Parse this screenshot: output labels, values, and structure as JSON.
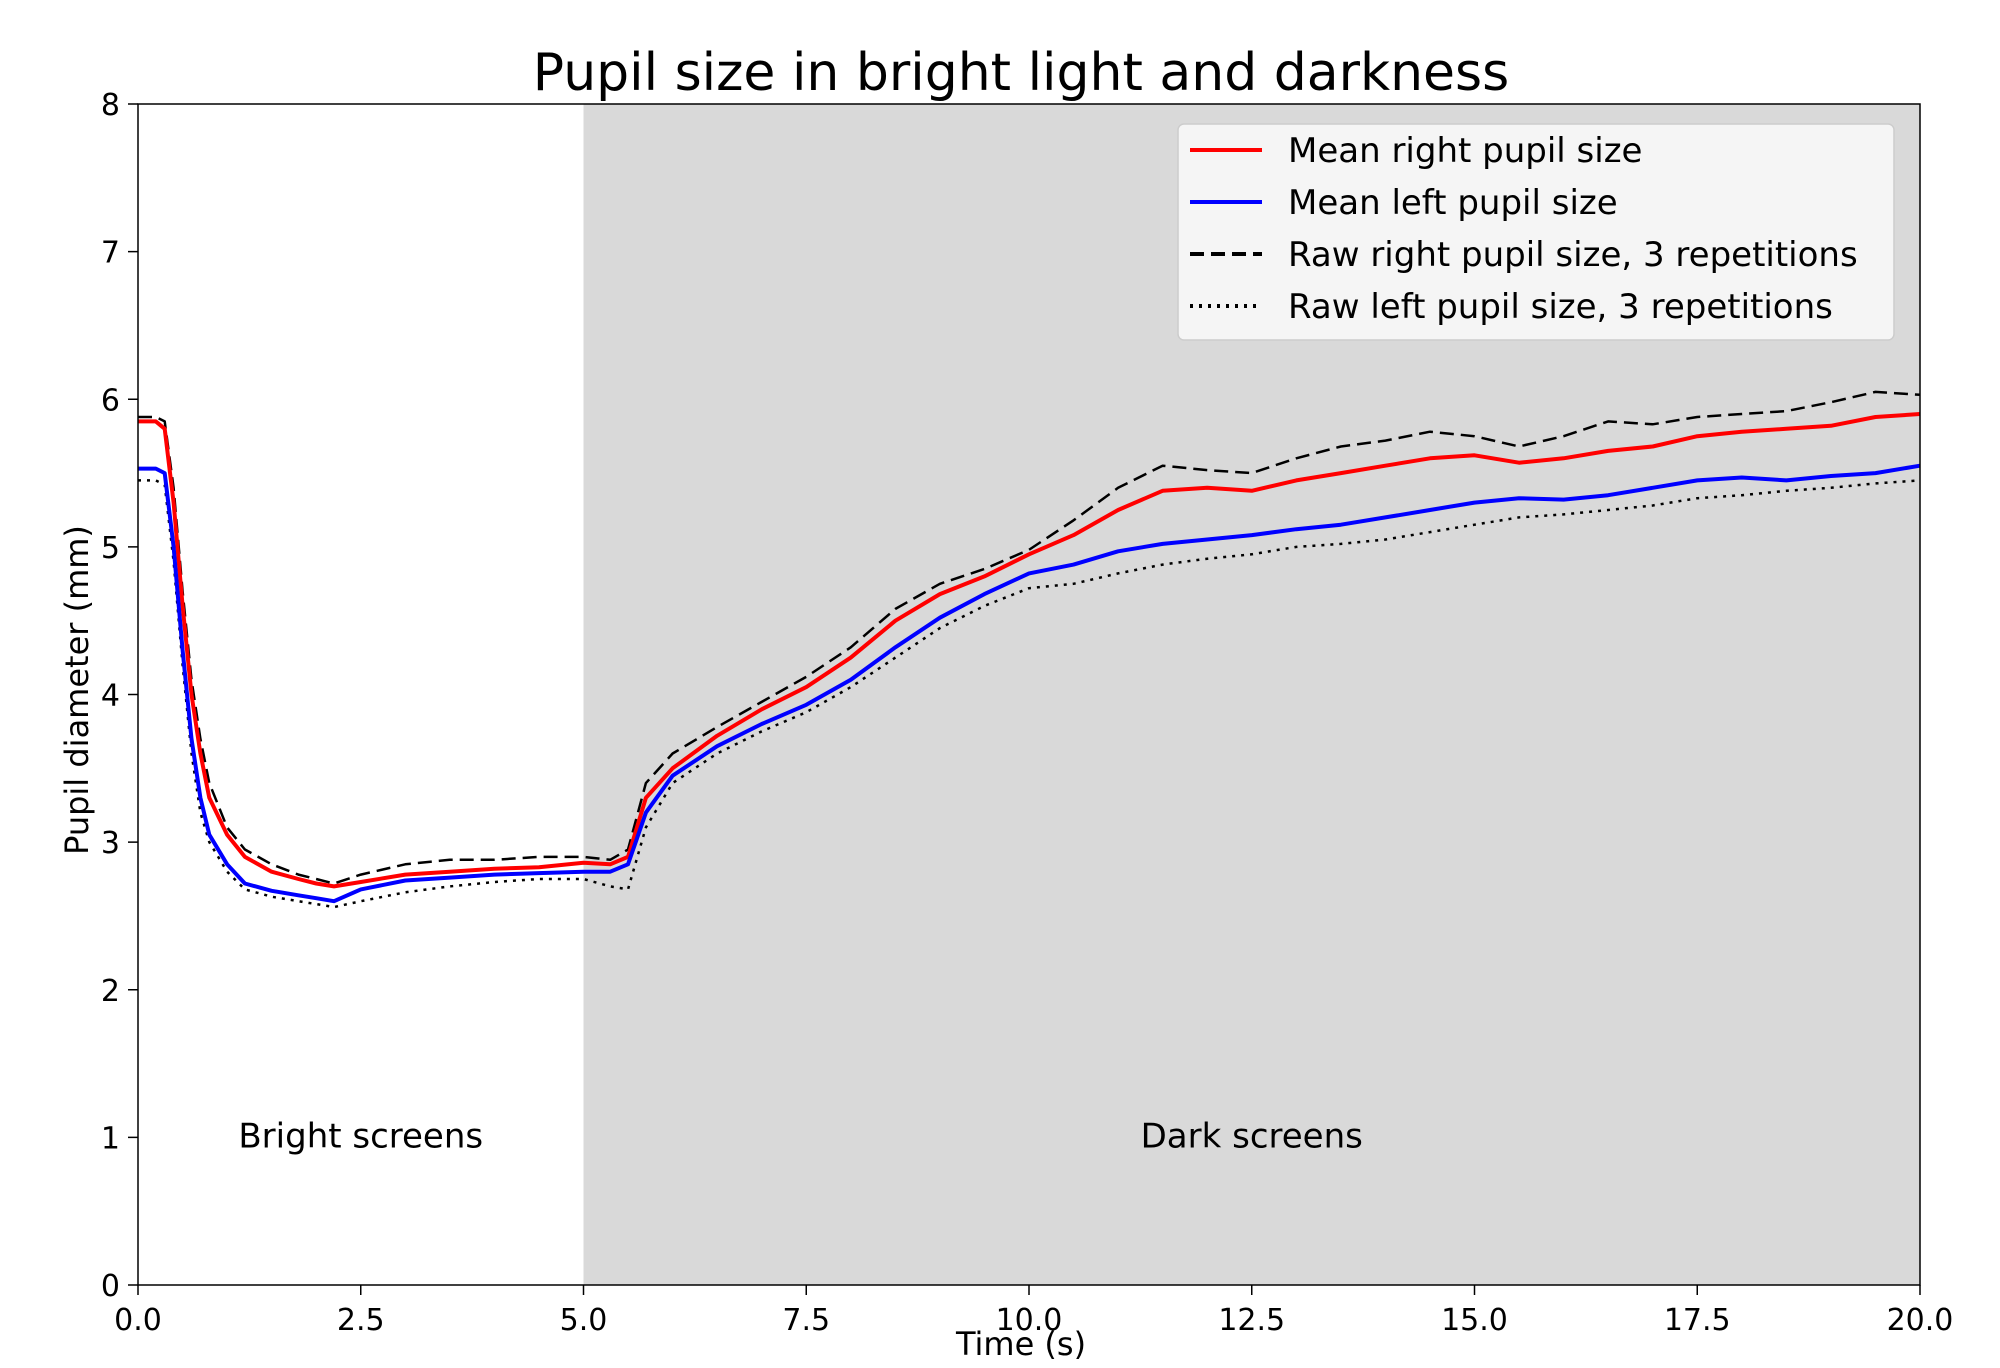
{
  "chart_data": {
    "type": "line",
    "title": "Pupil size in bright light and darkness",
    "xlabel": "Time (s)",
    "ylabel": "Pupil diameter (mm)",
    "xlim": [
      0,
      20
    ],
    "ylim": [
      0,
      8
    ],
    "x_ticks": [
      "0.0",
      "2.5",
      "5.0",
      "7.5",
      "10.0",
      "12.5",
      "15.0",
      "17.5",
      "20.0"
    ],
    "y_ticks": [
      "0",
      "1",
      "2",
      "3",
      "4",
      "5",
      "6",
      "7",
      "8"
    ],
    "grid": false,
    "legend_position": "top-right",
    "shaded_region": {
      "x_start": 5.0,
      "x_end": 20.0,
      "color": "#d9d9d9"
    },
    "annotations": [
      {
        "text": "Bright screens",
        "x": 2.5,
        "y": 1.0
      },
      {
        "text": "Dark screens",
        "x": 12.5,
        "y": 1.0
      }
    ],
    "series": [
      {
        "name": "Mean right pupil size",
        "color": "#ff0000",
        "style": "solid",
        "x": [
          0,
          0.2,
          0.3,
          0.4,
          0.5,
          0.6,
          0.7,
          0.8,
          1.0,
          1.2,
          1.5,
          1.8,
          2.0,
          2.2,
          2.5,
          3.0,
          3.5,
          4.0,
          4.5,
          5.0,
          5.3,
          5.5,
          5.7,
          6.0,
          6.5,
          7.0,
          7.5,
          8.0,
          8.5,
          9.0,
          9.5,
          10.0,
          10.5,
          11.0,
          11.5,
          12.0,
          12.5,
          13.0,
          13.5,
          14.0,
          14.5,
          15.0,
          15.5,
          16.0,
          16.5,
          17.0,
          17.5,
          18.0,
          18.5,
          19.0,
          19.5,
          20.0
        ],
        "y": [
          5.85,
          5.85,
          5.8,
          5.3,
          4.6,
          4.0,
          3.6,
          3.3,
          3.05,
          2.9,
          2.8,
          2.75,
          2.72,
          2.7,
          2.73,
          2.78,
          2.8,
          2.82,
          2.83,
          2.86,
          2.85,
          2.9,
          3.3,
          3.5,
          3.72,
          3.9,
          4.05,
          4.25,
          4.5,
          4.68,
          4.8,
          4.95,
          5.08,
          5.25,
          5.38,
          5.4,
          5.38,
          5.45,
          5.5,
          5.55,
          5.6,
          5.62,
          5.57,
          5.6,
          5.65,
          5.68,
          5.75,
          5.78,
          5.8,
          5.82,
          5.88,
          5.9
        ]
      },
      {
        "name": "Mean left pupil size",
        "color": "#0000ff",
        "style": "solid",
        "x": [
          0,
          0.2,
          0.3,
          0.4,
          0.5,
          0.6,
          0.7,
          0.8,
          1.0,
          1.2,
          1.5,
          1.8,
          2.0,
          2.2,
          2.5,
          3.0,
          3.5,
          4.0,
          4.5,
          5.0,
          5.3,
          5.5,
          5.7,
          6.0,
          6.5,
          7.0,
          7.5,
          8.0,
          8.5,
          9.0,
          9.5,
          10.0,
          10.5,
          11.0,
          11.5,
          12.0,
          12.5,
          13.0,
          13.5,
          14.0,
          14.5,
          15.0,
          15.5,
          16.0,
          16.5,
          17.0,
          17.5,
          18.0,
          18.5,
          19.0,
          19.5,
          20.0
        ],
        "y": [
          5.53,
          5.53,
          5.5,
          5.0,
          4.3,
          3.7,
          3.3,
          3.05,
          2.85,
          2.72,
          2.67,
          2.64,
          2.62,
          2.6,
          2.68,
          2.74,
          2.76,
          2.78,
          2.79,
          2.8,
          2.8,
          2.85,
          3.2,
          3.45,
          3.65,
          3.8,
          3.93,
          4.1,
          4.32,
          4.52,
          4.68,
          4.82,
          4.88,
          4.97,
          5.02,
          5.05,
          5.08,
          5.12,
          5.15,
          5.2,
          5.25,
          5.3,
          5.33,
          5.32,
          5.35,
          5.4,
          5.45,
          5.47,
          5.45,
          5.48,
          5.5,
          5.55
        ]
      },
      {
        "name": "Raw right pupil size, 3 repetitions",
        "color": "#000000",
        "style": "dashed",
        "x": [
          0,
          0.2,
          0.3,
          0.4,
          0.5,
          0.6,
          0.7,
          0.8,
          1.0,
          1.2,
          1.5,
          1.8,
          2.0,
          2.2,
          2.5,
          3.0,
          3.5,
          4.0,
          4.5,
          5.0,
          5.3,
          5.5,
          5.7,
          6.0,
          6.5,
          7.0,
          7.5,
          8.0,
          8.5,
          9.0,
          9.5,
          10.0,
          10.5,
          11.0,
          11.5,
          12.0,
          12.5,
          13.0,
          13.5,
          14.0,
          14.5,
          15.0,
          15.5,
          16.0,
          16.5,
          17.0,
          17.5,
          18.0,
          18.5,
          19.0,
          19.5,
          20.0
        ],
        "y": [
          5.88,
          5.88,
          5.85,
          5.4,
          4.7,
          4.1,
          3.7,
          3.4,
          3.1,
          2.95,
          2.85,
          2.78,
          2.75,
          2.72,
          2.78,
          2.85,
          2.88,
          2.88,
          2.9,
          2.9,
          2.88,
          2.95,
          3.4,
          3.6,
          3.78,
          3.95,
          4.12,
          4.32,
          4.58,
          4.75,
          4.85,
          4.98,
          5.18,
          5.4,
          5.55,
          5.52,
          5.5,
          5.6,
          5.68,
          5.72,
          5.78,
          5.75,
          5.68,
          5.75,
          5.85,
          5.83,
          5.88,
          5.9,
          5.92,
          5.98,
          6.05,
          6.03
        ]
      },
      {
        "name": "Raw left pupil size, 3 repetitions",
        "color": "#000000",
        "style": "dotted",
        "x": [
          0,
          0.2,
          0.3,
          0.4,
          0.5,
          0.6,
          0.7,
          0.8,
          1.0,
          1.2,
          1.5,
          1.8,
          2.0,
          2.2,
          2.5,
          3.0,
          3.5,
          4.0,
          4.5,
          5.0,
          5.3,
          5.5,
          5.7,
          6.0,
          6.5,
          7.0,
          7.5,
          8.0,
          8.5,
          9.0,
          9.5,
          10.0,
          10.5,
          11.0,
          11.5,
          12.0,
          12.5,
          13.0,
          13.5,
          14.0,
          14.5,
          15.0,
          15.5,
          16.0,
          16.5,
          17.0,
          17.5,
          18.0,
          18.5,
          19.0,
          19.5,
          20.0
        ],
        "y": [
          5.45,
          5.45,
          5.42,
          4.9,
          4.2,
          3.6,
          3.2,
          3.0,
          2.8,
          2.68,
          2.63,
          2.6,
          2.58,
          2.56,
          2.6,
          2.66,
          2.7,
          2.73,
          2.75,
          2.75,
          2.7,
          2.68,
          3.1,
          3.4,
          3.6,
          3.75,
          3.88,
          4.05,
          4.25,
          4.45,
          4.6,
          4.72,
          4.75,
          4.82,
          4.88,
          4.92,
          4.95,
          5.0,
          5.02,
          5.05,
          5.1,
          5.15,
          5.2,
          5.22,
          5.25,
          5.28,
          5.33,
          5.35,
          5.38,
          5.4,
          5.43,
          5.45
        ]
      }
    ]
  }
}
